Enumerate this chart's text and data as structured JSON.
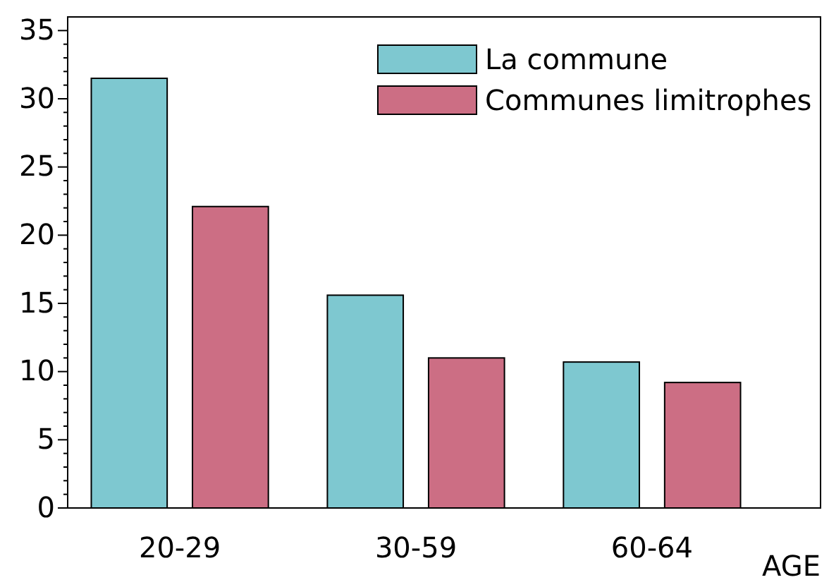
{
  "chart_data": {
    "type": "bar",
    "xlabel": "AGE",
    "categories": [
      "20-29",
      "30-59",
      "60-64"
    ],
    "series": [
      {
        "name": "La commune",
        "color": "#7ec8d0",
        "values": [
          31.5,
          15.6,
          10.7
        ]
      },
      {
        "name": "Communes limitrophes",
        "color": "#cc6e84",
        "values": [
          22.1,
          11,
          9.2
        ]
      }
    ],
    "ylim": [
      0,
      36
    ],
    "yticks": [
      0,
      {
        "value": 1,
        "label": null
      },
      {
        "value": 2,
        "label": null
      },
      {
        "value": 3,
        "label": null
      },
      {
        "value": 4,
        "label": null
      },
      5,
      {
        "value": 6,
        "label": null
      },
      {
        "value": 7,
        "label": null
      },
      {
        "value": 8,
        "label": null
      },
      {
        "value": 9,
        "label": null
      },
      10,
      {
        "value": 11,
        "label": null
      },
      {
        "value": 12,
        "label": null
      },
      {
        "value": 13,
        "label": null
      },
      {
        "value": 14,
        "label": null
      },
      15,
      {
        "value": 16,
        "label": null
      },
      {
        "value": 17,
        "label": null
      },
      {
        "value": 18,
        "label": null
      },
      {
        "value": 19,
        "label": null
      },
      20,
      {
        "value": 21,
        "label": null
      },
      {
        "value": 22,
        "label": null
      },
      {
        "value": 23,
        "label": null
      },
      {
        "value": 24,
        "label": null
      },
      25,
      {
        "value": 26,
        "label": null
      },
      {
        "value": 27,
        "label": null
      },
      {
        "value": 28,
        "label": null
      },
      {
        "value": 29,
        "label": null
      },
      30,
      {
        "value": 31,
        "label": null
      },
      {
        "value": 32,
        "label": null
      },
      {
        "value": 33,
        "label": null
      },
      {
        "value": 34,
        "label": null
      },
      35
    ],
    "legend": "top right",
    "grid": false
  }
}
